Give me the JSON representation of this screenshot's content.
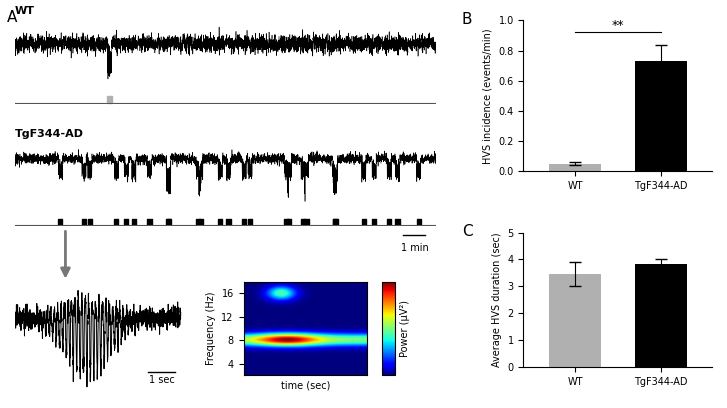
{
  "panel_A": {
    "label": "A",
    "traces": [
      {
        "name": "WT",
        "event_color": "#b0b0b0"
      },
      {
        "name": "TgF344-AD",
        "event_color": "#000000"
      }
    ],
    "scale_bar_long": "1 min",
    "scale_bar_short": "1 sec",
    "spectrogram": {
      "ylabel": "Frequency (Hz)",
      "xlabel": "time (sec)",
      "ylim": [
        2,
        18
      ],
      "yticks": [
        4,
        8,
        12,
        16
      ],
      "colorbar_label": "Power (μV²)",
      "tick_labels": "y"
    }
  },
  "chart_data": [
    {
      "label": "B",
      "type": "bar",
      "categories": [
        "WT",
        "TgF344-AD"
      ],
      "values": [
        0.05,
        0.73
      ],
      "errors": [
        0.01,
        0.11
      ],
      "colors": [
        "#b0b0b0",
        "#000000"
      ],
      "ylabel": "HVS incidence (events/min)",
      "ylim": [
        0,
        1.0
      ],
      "yticks": [
        {
          "value": 0,
          "label": "0.0"
        },
        {
          "value": 0.2,
          "label": "0.2"
        },
        {
          "value": 0.4,
          "label": "0.4"
        },
        {
          "value": 0.6,
          "label": "0.6"
        },
        {
          "value": 0.8,
          "label": "0.8"
        },
        {
          "value": 1.0,
          "label": "1.0"
        }
      ],
      "significance": {
        "text": "**",
        "value": 0.92
      }
    },
    {
      "label": "C",
      "type": "bar",
      "categories": [
        "WT",
        "TgF344-AD"
      ],
      "values": [
        3.45,
        3.85
      ],
      "errors": [
        0.45,
        0.18
      ],
      "colors": [
        "#b0b0b0",
        "#000000"
      ],
      "ylabel": "Average HVS duration (sec)",
      "ylim": [
        0,
        5
      ],
      "yticks": [
        0,
        1,
        2,
        3,
        4,
        5
      ]
    }
  ]
}
